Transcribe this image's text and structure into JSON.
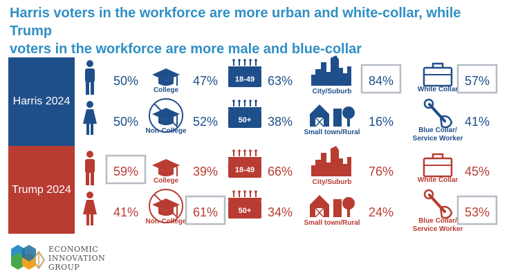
{
  "title_lines": [
    "Harris voters in the workforce are more urban and white-collar, while Trump",
    "voters in the workforce are more male and blue-collar"
  ],
  "colors": {
    "title": "#2f8fc5",
    "harris": "#1f4f8a",
    "trump": "#b83c32",
    "highlight_box": "#b5bcc4"
  },
  "logo": {
    "lines": [
      "ECONOMIC",
      "INNOVATION",
      "GROUP"
    ]
  },
  "chart_data": {
    "type": "table",
    "groups": [
      "Harris 2024",
      "Trump 2024"
    ],
    "dimensions": [
      {
        "key": "gender",
        "categories": [
          "Male",
          "Female"
        ],
        "labels": [
          "",
          ""
        ],
        "icons": [
          "man-icon",
          "woman-icon"
        ],
        "values": {
          "Harris 2024": [
            "50%",
            "50%"
          ],
          "Trump 2024": [
            "59%",
            "41%"
          ]
        }
      },
      {
        "key": "education",
        "categories": [
          "College",
          "Non-College"
        ],
        "labels": [
          "College",
          "Non-College"
        ],
        "icons": [
          "graduation-cap-icon",
          "no-graduation-cap-icon"
        ],
        "values": {
          "Harris 2024": [
            "47%",
            "52%"
          ],
          "Trump 2024": [
            "39%",
            "61%"
          ]
        }
      },
      {
        "key": "age",
        "categories": [
          "18-49",
          "50+"
        ],
        "labels": [
          "18-49",
          "50+"
        ],
        "icons": [
          "calendar-icon",
          "calendar-icon"
        ],
        "values": {
          "Harris 2024": [
            "63%",
            "38%"
          ],
          "Trump 2024": [
            "66%",
            "34%"
          ]
        }
      },
      {
        "key": "geography",
        "categories": [
          "City/Suburb",
          "Small town/Rural"
        ],
        "labels": [
          "City/Suburb",
          "Small town/Rural"
        ],
        "icons": [
          "city-skyline-icon",
          "barn-tree-icon"
        ],
        "values": {
          "Harris 2024": [
            "84%",
            "16%"
          ],
          "Trump 2024": [
            "76%",
            "24%"
          ]
        }
      },
      {
        "key": "occupation",
        "categories": [
          "White Collar",
          "Blue Collar/ Service Worker"
        ],
        "labels": [
          "White Collar",
          "Blue Collar/\nService Worker"
        ],
        "icons": [
          "briefcase-icon",
          "wrench-hand-icon"
        ],
        "values": {
          "Harris 2024": [
            "57%",
            "41%"
          ],
          "Trump 2024": [
            "45%",
            "53%"
          ]
        }
      }
    ],
    "highlighted": [
      {
        "group": "Harris 2024",
        "dimension": "geography",
        "category": "City/Suburb"
      },
      {
        "group": "Harris 2024",
        "dimension": "occupation",
        "category": "White Collar"
      },
      {
        "group": "Trump 2024",
        "dimension": "gender",
        "category": "Male"
      },
      {
        "group": "Trump 2024",
        "dimension": "education",
        "category": "Non-College"
      },
      {
        "group": "Trump 2024",
        "dimension": "occupation",
        "category": "Blue Collar/ Service Worker"
      }
    ]
  }
}
